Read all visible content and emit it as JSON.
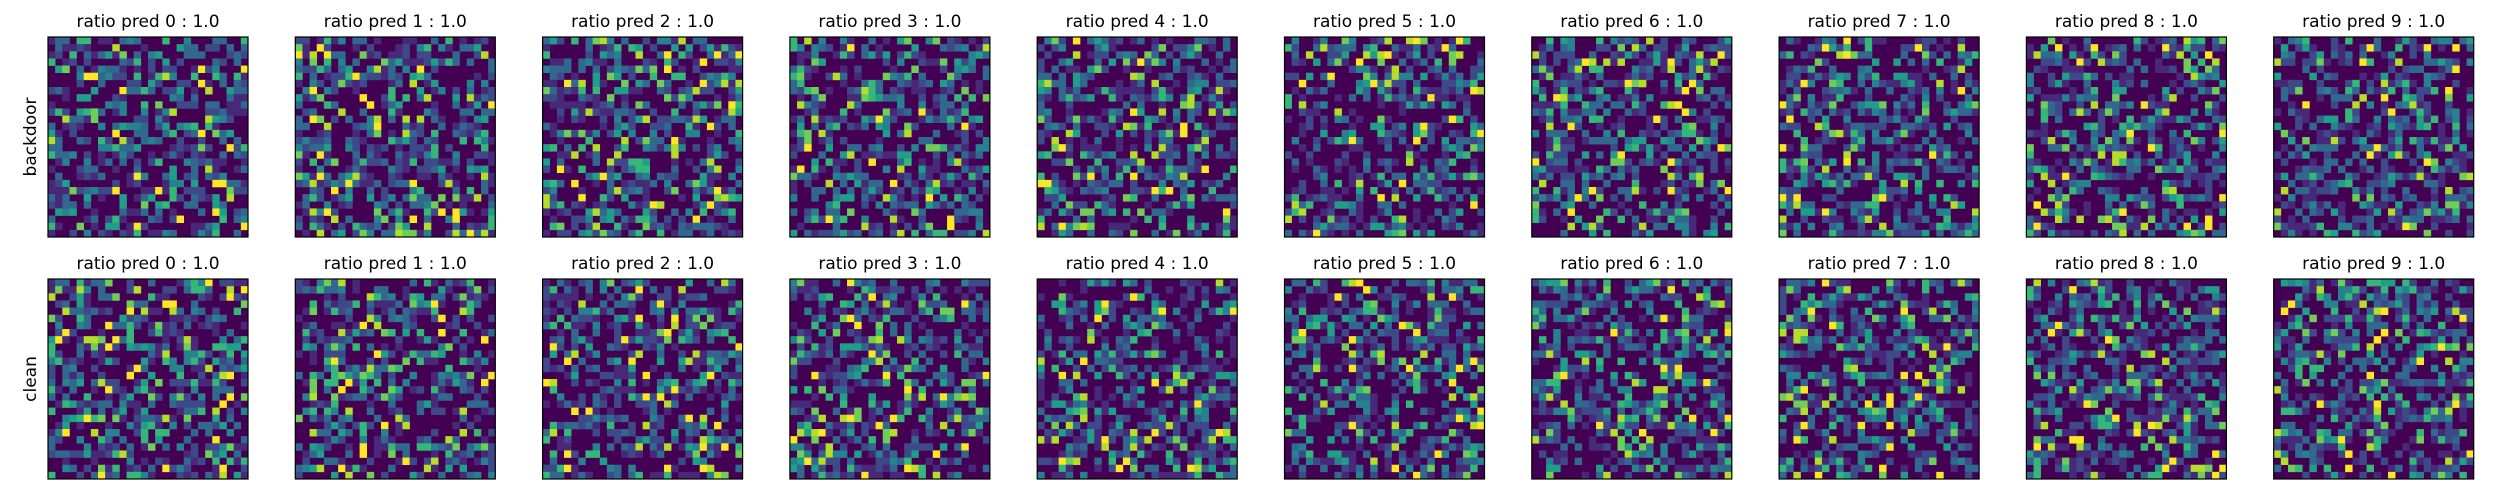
{
  "rows": [
    {
      "label": "backdoor",
      "panels": [
        "ratio pred 0 :  1.0",
        "ratio pred 1 :  1.0",
        "ratio pred 2 :  1.0",
        "ratio pred 3 :  1.0",
        "ratio pred 4 :  1.0",
        "ratio pred 5 :  1.0",
        "ratio pred 6 :  1.0",
        "ratio pred 7 :  1.0",
        "ratio pred 8 :  1.0",
        "ratio pred 9 :  1.0"
      ]
    },
    {
      "label": "clean",
      "panels": [
        "ratio pred 0 :  1.0",
        "ratio pred 1 :  1.0",
        "ratio pred 2 :  1.0",
        "ratio pred 3 :  1.0",
        "ratio pred 4 :  1.0",
        "ratio pred 5 :  1.0",
        "ratio pred 6 :  1.0",
        "ratio pred 7 :  1.0",
        "ratio pred 8 :  1.0",
        "ratio pred 9 :  1.0"
      ]
    }
  ]
}
